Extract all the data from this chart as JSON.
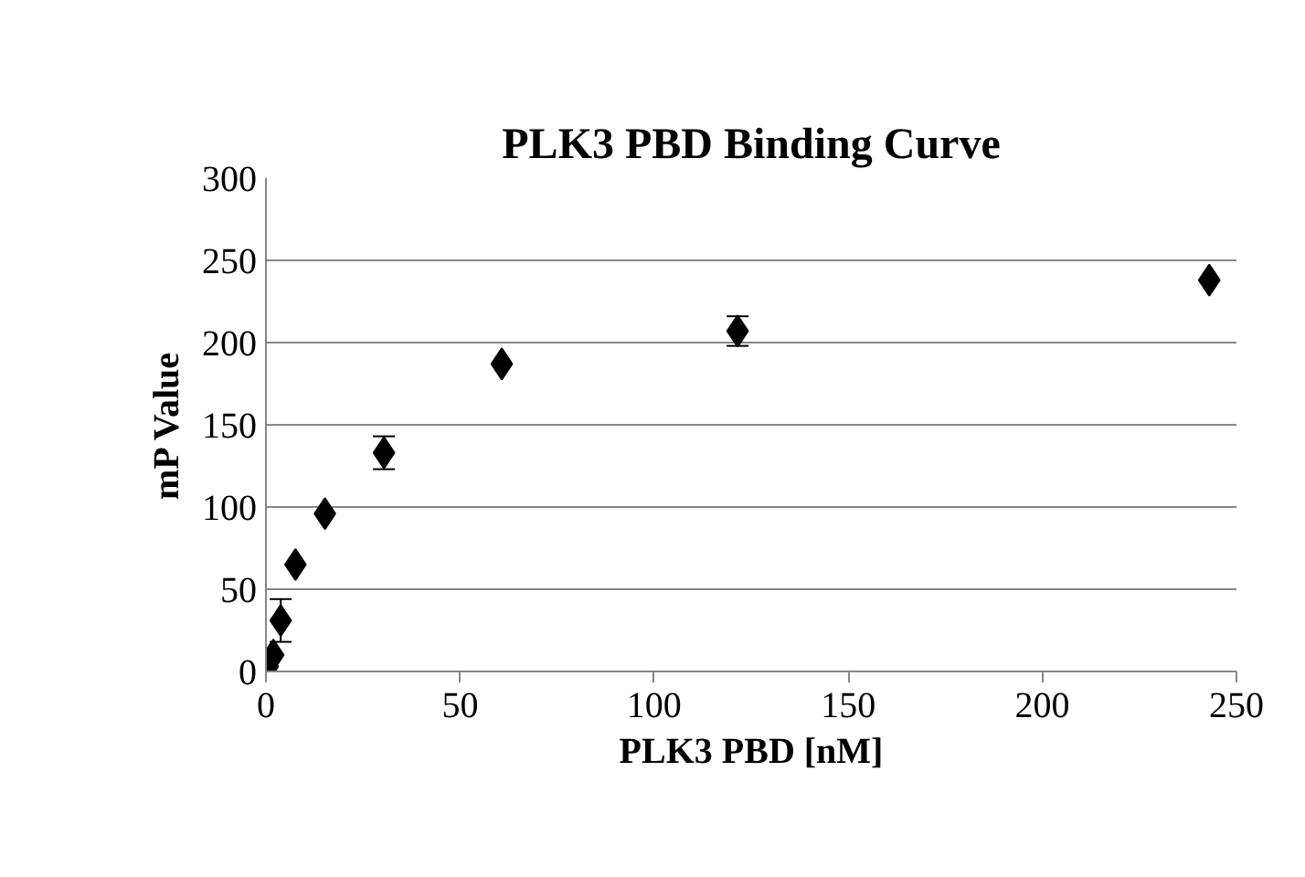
{
  "chart_data": {
    "type": "scatter",
    "title": "PLK3 PBD Binding Curve",
    "xlabel": "PLK3 PBD [nM]",
    "ylabel": "mP Value",
    "x": [
      0.47,
      1.9,
      3.8,
      7.6,
      15.2,
      30.4,
      60.75,
      121.5,
      243
    ],
    "series": [
      {
        "color": "#000000",
        "values": [
          3,
          10,
          31,
          65,
          96,
          133,
          187,
          207,
          238
        ],
        "errors": [
          null,
          null,
          13,
          null,
          null,
          10,
          null,
          9,
          null
        ]
      }
    ],
    "xlim": [
      0,
      250
    ],
    "xticks": [
      0,
      50,
      100,
      150,
      200,
      250
    ],
    "ylim": [
      0,
      300
    ],
    "yticks": [
      0,
      50,
      100,
      150,
      200,
      250,
      300
    ],
    "grid": "y",
    "marker": "diamond"
  }
}
